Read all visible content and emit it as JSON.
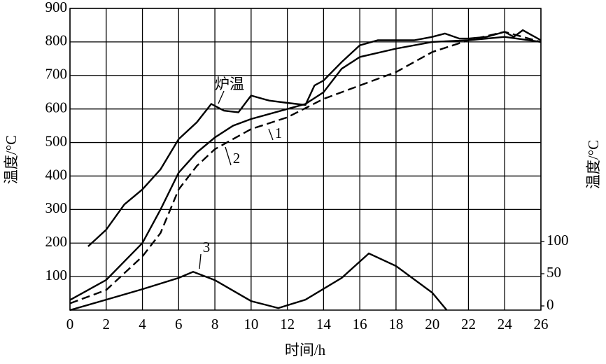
{
  "chart_data": {
    "type": "line",
    "xlabel": "时间/h",
    "ylabel": "温度/°C",
    "y2label": "温度/°C",
    "xlim": [
      0,
      26
    ],
    "xticks": [
      0,
      2,
      4,
      6,
      8,
      10,
      12,
      14,
      16,
      18,
      20,
      22,
      24,
      26
    ],
    "ylim": [
      0,
      900
    ],
    "yticks": [
      100,
      200,
      300,
      400,
      500,
      600,
      700,
      800,
      900
    ],
    "y2lim": [
      -6.5,
      462
    ],
    "y2ticks": [
      0,
      50,
      100
    ],
    "grid": true,
    "series": [
      {
        "name": "炉温",
        "color": "#000000",
        "x": [
          1,
          2,
          3,
          4,
          5,
          6,
          7,
          7.8,
          8.5,
          9.3,
          10,
          11,
          12,
          13,
          13.5,
          14,
          15,
          16,
          17,
          18,
          19,
          20,
          20.7,
          21.5,
          22,
          23,
          24,
          24.5,
          25,
          26
        ],
        "values": [
          190,
          240,
          315,
          360,
          420,
          510,
          560,
          615,
          595,
          590,
          640,
          625,
          618,
          612,
          670,
          685,
          740,
          790,
          805,
          805,
          805,
          815,
          825,
          810,
          810,
          815,
          830,
          815,
          835,
          805
        ]
      },
      {
        "name": "1",
        "color": "#000000",
        "x": [
          0,
          2,
          4,
          5,
          6,
          7,
          8,
          9,
          10,
          12,
          13,
          14,
          15,
          16,
          18,
          20,
          22,
          24,
          26
        ],
        "values": [
          30,
          90,
          200,
          300,
          410,
          470,
          515,
          550,
          570,
          600,
          615,
          650,
          720,
          755,
          780,
          800,
          805,
          815,
          800
        ]
      },
      {
        "name": "2",
        "color": "#000000",
        "dashed": true,
        "x": [
          0,
          2,
          4,
          5,
          6,
          7,
          8,
          10,
          12,
          14,
          16,
          18,
          20,
          22,
          24,
          26
        ],
        "values": [
          20,
          60,
          160,
          230,
          360,
          430,
          480,
          540,
          575,
          630,
          670,
          710,
          770,
          805,
          830,
          800
        ]
      },
      {
        "name": "3",
        "color": "#000000",
        "axis": "y2",
        "x": [
          0,
          2,
          4,
          6,
          6.8,
          8,
          10,
          11.5,
          13,
          15,
          16.5,
          18,
          20,
          20.8
        ],
        "values": [
          -6.5,
          9.7,
          26,
          43.5,
          53,
          40,
          7.5,
          -3.4,
          9.7,
          43.5,
          81.5,
          62,
          20.6,
          -6.5
        ]
      }
    ]
  }
}
